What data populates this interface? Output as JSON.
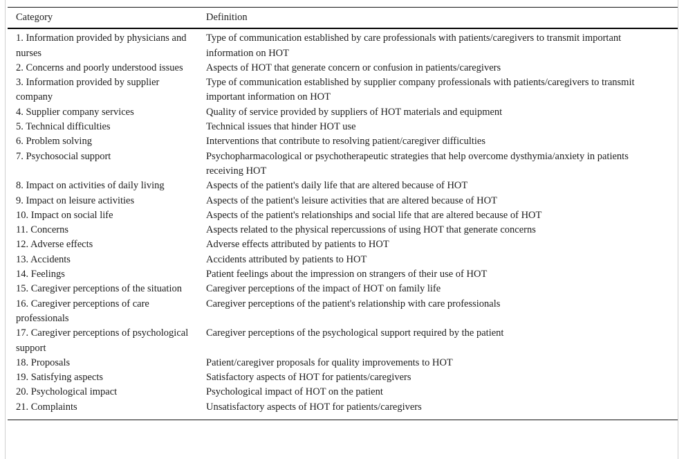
{
  "table": {
    "columns": [
      "Category",
      "Definition"
    ],
    "rows": [
      {
        "category": "1. Information provided by physicians and nurses",
        "definition": "Type of communication established by care professionals with patients/caregivers to transmit important information on HOT"
      },
      {
        "category": "2. Concerns and poorly understood issues",
        "definition": "Aspects of HOT that generate concern or confusion in patients/caregivers"
      },
      {
        "category": "3. Information provided by supplier company",
        "definition": "Type of communication established by supplier company professionals with patients/caregivers to transmit important information on HOT"
      },
      {
        "category": "4. Supplier company services",
        "definition": "Quality of service provided by suppliers of HOT materials and equipment"
      },
      {
        "category": "5. Technical difficulties",
        "definition": "Technical issues that hinder HOT use"
      },
      {
        "category": "6. Problem solving",
        "definition": "Interventions that contribute to resolving patient/caregiver difficulties"
      },
      {
        "category": "7. Psychosocial support",
        "definition": "Psychopharmacological or psychotherapeutic strategies that help overcome dysthymia/anxiety in patients receiving HOT"
      },
      {
        "category": "8. Impact on activities of daily living",
        "definition": "Aspects of the patient's daily life that are altered because of HOT"
      },
      {
        "category": "9. Impact on leisure activities",
        "definition": "Aspects of the patient's leisure activities that are altered because of HOT"
      },
      {
        "category": "10. Impact on social life",
        "definition": "Aspects of the patient's relationships and social life that are altered because of HOT"
      },
      {
        "category": "11. Concerns",
        "definition": "Aspects related to the physical repercussions of using HOT that generate concerns"
      },
      {
        "category": "12. Adverse effects",
        "definition": "Adverse effects attributed by patients to HOT"
      },
      {
        "category": "13. Accidents",
        "definition": "Accidents attributed by patients to HOT"
      },
      {
        "category": "14. Feelings",
        "definition": "Patient feelings about the impression on strangers of their use of HOT"
      },
      {
        "category": "15. Caregiver perceptions of the situation",
        "definition": "Caregiver perceptions of the impact of HOT on family life"
      },
      {
        "category": "16. Caregiver perceptions of care professionals",
        "definition": "Caregiver perceptions of the patient's relationship with care professionals"
      },
      {
        "category": "17. Caregiver perceptions of psychological support",
        "definition": "Caregiver perceptions of the psychological support required by the patient"
      },
      {
        "category": "18. Proposals",
        "definition": "Patient/caregiver proposals for quality improvements to HOT"
      },
      {
        "category": "19. Satisfying aspects",
        "definition": "Satisfactory aspects of HOT for patients/caregivers"
      },
      {
        "category": "20. Psychological impact",
        "definition": "Psychological impact of HOT on the patient"
      },
      {
        "category": "21. Complaints",
        "definition": "Unsatisfactory aspects of HOT for patients/caregivers"
      }
    ]
  }
}
